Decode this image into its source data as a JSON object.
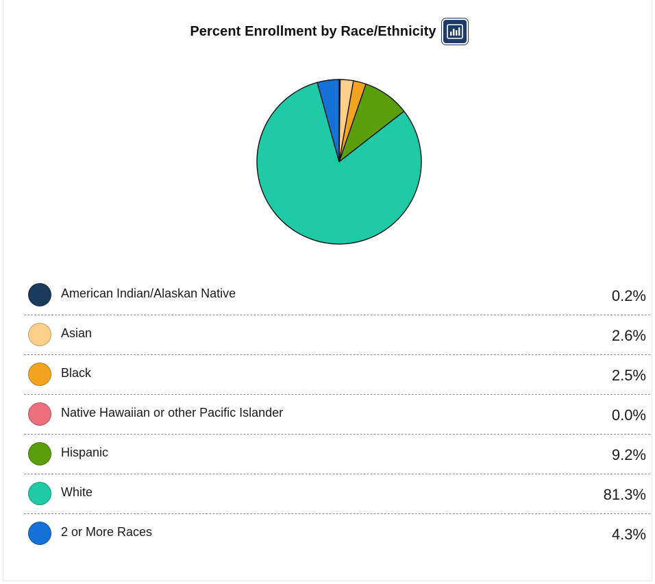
{
  "header": {
    "title": "Percent Enrollment by Race/Ethnicity",
    "icon": "bar-chart-icon"
  },
  "chart_data": {
    "type": "pie",
    "title": "Percent Enrollment by Race/Ethnicity",
    "categories": [
      "American Indian/Alaskan Native",
      "Asian",
      "Black",
      "Native Hawaiian or other Pacific Islander",
      "Hispanic",
      "White",
      "2 or More Races"
    ],
    "values": [
      0.2,
      2.6,
      2.5,
      0.0,
      9.2,
      81.3,
      4.3
    ],
    "labels": [
      "0.2%",
      "2.6%",
      "2.5%",
      "0.0%",
      "9.2%",
      "81.3%",
      "4.3%"
    ],
    "colors": [
      "#1b3a5c",
      "#ffd08a",
      "#f2a421",
      "#ec6f7e",
      "#5b9e0c",
      "#1ecba6",
      "#1671d6"
    ],
    "legend": "bottom",
    "start_angle_deg": 0,
    "direction": "clockwise"
  }
}
